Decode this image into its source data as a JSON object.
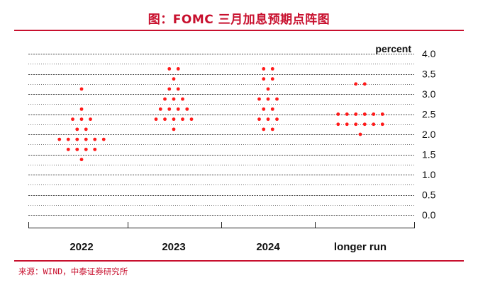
{
  "title": "图：FOMC 三月加息预期点阵图",
  "source": "来源：WIND，中泰证券研究所",
  "colors": {
    "accent": "#c8102e",
    "dot": "#ff1a1a",
    "grid": "#444444",
    "text": "#111111"
  },
  "chart_data": {
    "type": "scatter",
    "title": "",
    "ylabel": "percent",
    "xlabel": "",
    "ylim": [
      0,
      4.0
    ],
    "yticks": [
      "0.0",
      "0.5",
      "1.0",
      "1.5",
      "2.0",
      "2.5",
      "3.0",
      "3.5",
      "4.0"
    ],
    "categories": [
      "2022",
      "2023",
      "2024",
      "longer run"
    ],
    "grid": "dotted horizontal",
    "groups": [
      {
        "category": "2022",
        "levels": [
          {
            "value": 3.125,
            "count": 1
          },
          {
            "value": 2.625,
            "count": 1
          },
          {
            "value": 2.375,
            "count": 3
          },
          {
            "value": 2.125,
            "count": 2
          },
          {
            "value": 1.875,
            "count": 6
          },
          {
            "value": 1.625,
            "count": 4
          },
          {
            "value": 1.375,
            "count": 1
          }
        ]
      },
      {
        "category": "2023",
        "levels": [
          {
            "value": 3.625,
            "count": 2
          },
          {
            "value": 3.375,
            "count": 1
          },
          {
            "value": 3.125,
            "count": 2
          },
          {
            "value": 2.875,
            "count": 3
          },
          {
            "value": 2.625,
            "count": 4
          },
          {
            "value": 2.375,
            "count": 5
          },
          {
            "value": 2.125,
            "count": 1
          }
        ]
      },
      {
        "category": "2024",
        "levels": [
          {
            "value": 3.625,
            "count": 2
          },
          {
            "value": 3.375,
            "count": 2
          },
          {
            "value": 3.125,
            "count": 1
          },
          {
            "value": 2.875,
            "count": 3
          },
          {
            "value": 2.625,
            "count": 2
          },
          {
            "value": 2.375,
            "count": 3
          },
          {
            "value": 2.125,
            "count": 2
          }
        ]
      },
      {
        "category": "longer run",
        "levels": [
          {
            "value": 3.25,
            "count": 2
          },
          {
            "value": 2.5,
            "count": 6
          },
          {
            "value": 2.25,
            "count": 6
          },
          {
            "value": 2.0,
            "count": 1
          }
        ]
      }
    ]
  }
}
